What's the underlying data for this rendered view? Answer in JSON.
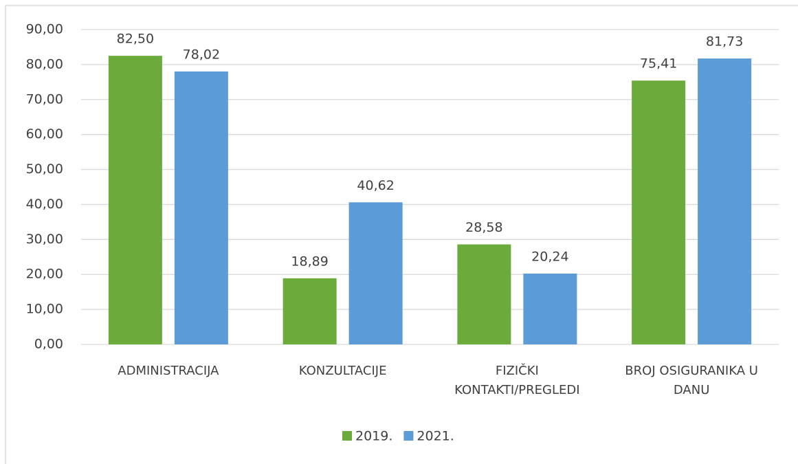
{
  "chart_data": {
    "type": "bar",
    "categories": [
      "ADMINISTRACIJA",
      "KONZULTACIJE",
      "FIZIČKI KONTAKTI/PREGLEDI",
      "BROJ OSIGURANIKA U DANU"
    ],
    "series": [
      {
        "name": "2019.",
        "color": "#6aab3b",
        "values": [
          82.5,
          18.89,
          28.58,
          75.41
        ],
        "value_labels": [
          "82,50",
          "18,89",
          "28,58",
          "75,41"
        ]
      },
      {
        "name": "2021.",
        "color": "#5a9bd8",
        "values": [
          78.02,
          40.62,
          20.24,
          81.73
        ],
        "value_labels": [
          "78,02",
          "40,62",
          "20,24",
          "81,73"
        ]
      }
    ],
    "ylim": [
      0,
      90
    ],
    "yticks": [
      {
        "value": 0,
        "label": "0,00"
      },
      {
        "value": 10,
        "label": "10,00"
      },
      {
        "value": 20,
        "label": "20,00"
      },
      {
        "value": 30,
        "label": "30,00"
      },
      {
        "value": 40,
        "label": "40,00"
      },
      {
        "value": 50,
        "label": "50,00"
      },
      {
        "value": 60,
        "label": "60,00"
      },
      {
        "value": 70,
        "label": "70,00"
      },
      {
        "value": 80,
        "label": "80,00"
      },
      {
        "value": 90,
        "label": "90,00"
      }
    ],
    "grid": true,
    "legend": "bottom"
  }
}
